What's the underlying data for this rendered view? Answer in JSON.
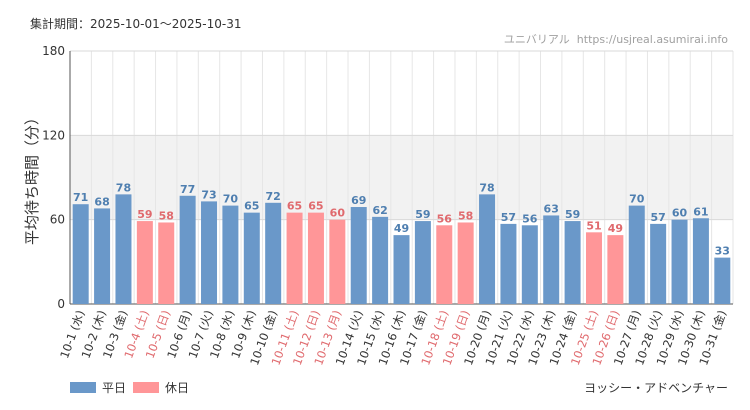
{
  "header": {
    "period_label": "集計期間：2025-10-01～2025-10-31",
    "site_name": "ユニバリアル",
    "site_url": "https://usjreal.asumirai.info"
  },
  "attraction_name": "ヨッシー・アドベンチャー",
  "colors": {
    "weekday": "#6a98c9",
    "holiday": "#ff9698",
    "holiday_text": "#e06a6e",
    "band": "#f2f2f2"
  },
  "chart_data": {
    "type": "bar",
    "title": "",
    "ylabel": "平均待ち時間（分）",
    "xlabel": "",
    "ylim": [
      0,
      180
    ],
    "yticks": [
      0,
      60,
      120,
      180
    ],
    "highlight_band": [
      60,
      120
    ],
    "legend": [
      {
        "name": "平日",
        "key": "weekday"
      },
      {
        "name": "休日",
        "key": "holiday"
      }
    ],
    "categories": [
      "10-1 (水)",
      "10-2 (木)",
      "10-3 (金)",
      "10-4 (土)",
      "10-5 (日)",
      "10-6 (月)",
      "10-7 (火)",
      "10-8 (水)",
      "10-9 (木)",
      "10-10 (金)",
      "10-11 (土)",
      "10-12 (日)",
      "10-13 (月)",
      "10-14 (火)",
      "10-15 (水)",
      "10-16 (木)",
      "10-17 (金)",
      "10-18 (土)",
      "10-19 (日)",
      "10-20 (月)",
      "10-21 (火)",
      "10-22 (水)",
      "10-23 (木)",
      "10-24 (金)",
      "10-25 (土)",
      "10-26 (日)",
      "10-27 (月)",
      "10-28 (火)",
      "10-29 (水)",
      "10-30 (木)",
      "10-31 (金)"
    ],
    "values": [
      71,
      68,
      78,
      59,
      58,
      77,
      73,
      70,
      65,
      72,
      65,
      65,
      60,
      69,
      62,
      49,
      59,
      56,
      58,
      78,
      57,
      56,
      63,
      59,
      51,
      49,
      70,
      57,
      60,
      61,
      33
    ],
    "day_type": [
      "weekday",
      "weekday",
      "weekday",
      "holiday",
      "holiday",
      "weekday",
      "weekday",
      "weekday",
      "weekday",
      "weekday",
      "holiday",
      "holiday",
      "holiday",
      "weekday",
      "weekday",
      "weekday",
      "weekday",
      "holiday",
      "holiday",
      "weekday",
      "weekday",
      "weekday",
      "weekday",
      "weekday",
      "holiday",
      "holiday",
      "weekday",
      "weekday",
      "weekday",
      "weekday",
      "weekday"
    ]
  }
}
